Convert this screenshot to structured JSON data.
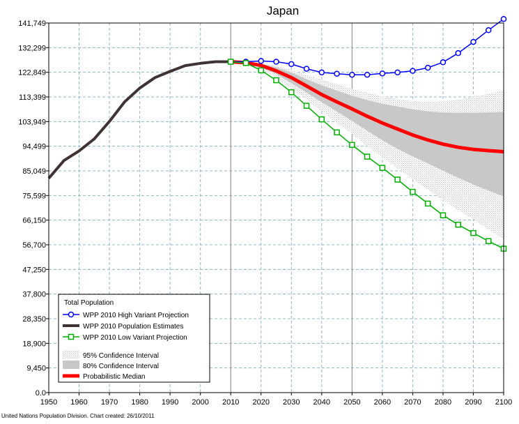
{
  "footer": "United Nations Population Division. Chart created: 26/10/2011",
  "chart_data": {
    "type": "line",
    "title": "Japan",
    "xlabel": "",
    "ylabel": "",
    "xlim": [
      1950,
      2100
    ],
    "ylim": [
      0,
      141749
    ],
    "x_ticks": [
      "1950",
      "1960",
      "1970",
      "1980",
      "1990",
      "2000",
      "2010",
      "2020",
      "2030",
      "2040",
      "2050",
      "2060",
      "2070",
      "2080",
      "2090",
      "2100"
    ],
    "y_ticks": [
      "0.0",
      "9,450",
      "18,900",
      "28,350",
      "37,800",
      "47,250",
      "56,700",
      "66,150",
      "75,599",
      "85,049",
      "94,499",
      "103,949",
      "113,399",
      "122,849",
      "132,299",
      "141,749"
    ],
    "grid": true,
    "legend_position": "bottom-left",
    "legend_title": "Total Population",
    "legend": [
      {
        "label": "WPP 2010 High Variant Projection",
        "style": "line-circle",
        "color": "#0000ff"
      },
      {
        "label": "WPP 2010 Population Estimates",
        "style": "line",
        "color": "#3f3333"
      },
      {
        "label": "WPP 2010 Low Variant Projection",
        "style": "line-square",
        "color": "#00b000"
      },
      {
        "label": "95% Confidence Interval",
        "style": "band-light",
        "color": "#e6e6e6"
      },
      {
        "label": "80% Confidence Interval",
        "style": "band",
        "color": "#c8c8c8"
      },
      {
        "label": "Probabilistic Median",
        "style": "line-thick",
        "color": "#ff0000"
      }
    ],
    "estimates": {
      "name": "WPP 2010 Population Estimates",
      "x": [
        1950,
        1955,
        1960,
        1965,
        1970,
        1975,
        1980,
        1985,
        1990,
        1995,
        2000,
        2005,
        2010
      ],
      "y": [
        82200,
        89000,
        92700,
        97300,
        104000,
        111500,
        116800,
        120800,
        123200,
        125400,
        126300,
        126900,
        126900
      ]
    },
    "high_variant": {
      "name": "WPP 2010 High Variant Projection",
      "x": [
        2010,
        2015,
        2020,
        2025,
        2030,
        2035,
        2040,
        2045,
        2050,
        2055,
        2060,
        2065,
        2070,
        2075,
        2080,
        2085,
        2090,
        2095,
        2100
      ],
      "y": [
        126900,
        126900,
        127200,
        126900,
        126000,
        124200,
        122800,
        122300,
        121900,
        121900,
        122400,
        122800,
        123400,
        124600,
        126700,
        130200,
        134500,
        139000,
        143300
      ]
    },
    "low_variant": {
      "name": "WPP 2010 Low Variant Projection",
      "x": [
        2010,
        2015,
        2020,
        2025,
        2030,
        2035,
        2040,
        2045,
        2050,
        2055,
        2060,
        2065,
        2070,
        2075,
        2080,
        2085,
        2090,
        2095,
        2100
      ],
      "y": [
        126900,
        126400,
        123600,
        119800,
        115200,
        110000,
        104800,
        99800,
        95000,
        90500,
        86200,
        81700,
        77000,
        72500,
        68000,
        64400,
        61200,
        58100,
        55200
      ]
    },
    "median": {
      "name": "Probabilistic Median",
      "x": [
        2010,
        2015,
        2020,
        2025,
        2030,
        2035,
        2040,
        2045,
        2050,
        2055,
        2060,
        2065,
        2070,
        2075,
        2080,
        2085,
        2090,
        2095,
        2100
      ],
      "y": [
        126900,
        126500,
        125500,
        123400,
        120800,
        117600,
        114300,
        111500,
        108800,
        106000,
        103400,
        101100,
        98800,
        96900,
        95300,
        94100,
        93300,
        92800,
        92400
      ]
    },
    "ci80": {
      "x": [
        2010,
        2015,
        2020,
        2025,
        2030,
        2035,
        2040,
        2045,
        2050,
        2055,
        2060,
        2065,
        2070,
        2075,
        2080,
        2085,
        2090,
        2095,
        2100
      ],
      "upper": [
        126900,
        126600,
        126000,
        124800,
        122800,
        120200,
        117900,
        115800,
        113900,
        112200,
        110800,
        109700,
        108700,
        107900,
        107400,
        107300,
        107300,
        107400,
        107700
      ],
      "lower": [
        126900,
        126300,
        124800,
        122200,
        118700,
        115100,
        111400,
        107800,
        104200,
        100400,
        96800,
        93500,
        90600,
        87900,
        85100,
        82400,
        79800,
        77500,
        75200
      ]
    },
    "ci95": {
      "x": [
        2010,
        2015,
        2020,
        2025,
        2030,
        2035,
        2040,
        2045,
        2050,
        2055,
        2060,
        2065,
        2070,
        2075,
        2080,
        2085,
        2090,
        2095,
        2100
      ],
      "upper": [
        126900,
        126700,
        126500,
        125400,
        123800,
        121800,
        120000,
        118300,
        116500,
        115000,
        113700,
        112600,
        111800,
        111500,
        111700,
        112400,
        113400,
        114600,
        115900
      ],
      "lower": [
        126900,
        126100,
        124200,
        120800,
        116600,
        112400,
        107900,
        103500,
        99200,
        94600,
        90200,
        86100,
        81900,
        77900,
        73900,
        70100,
        66500,
        62500,
        58800
      ]
    }
  }
}
